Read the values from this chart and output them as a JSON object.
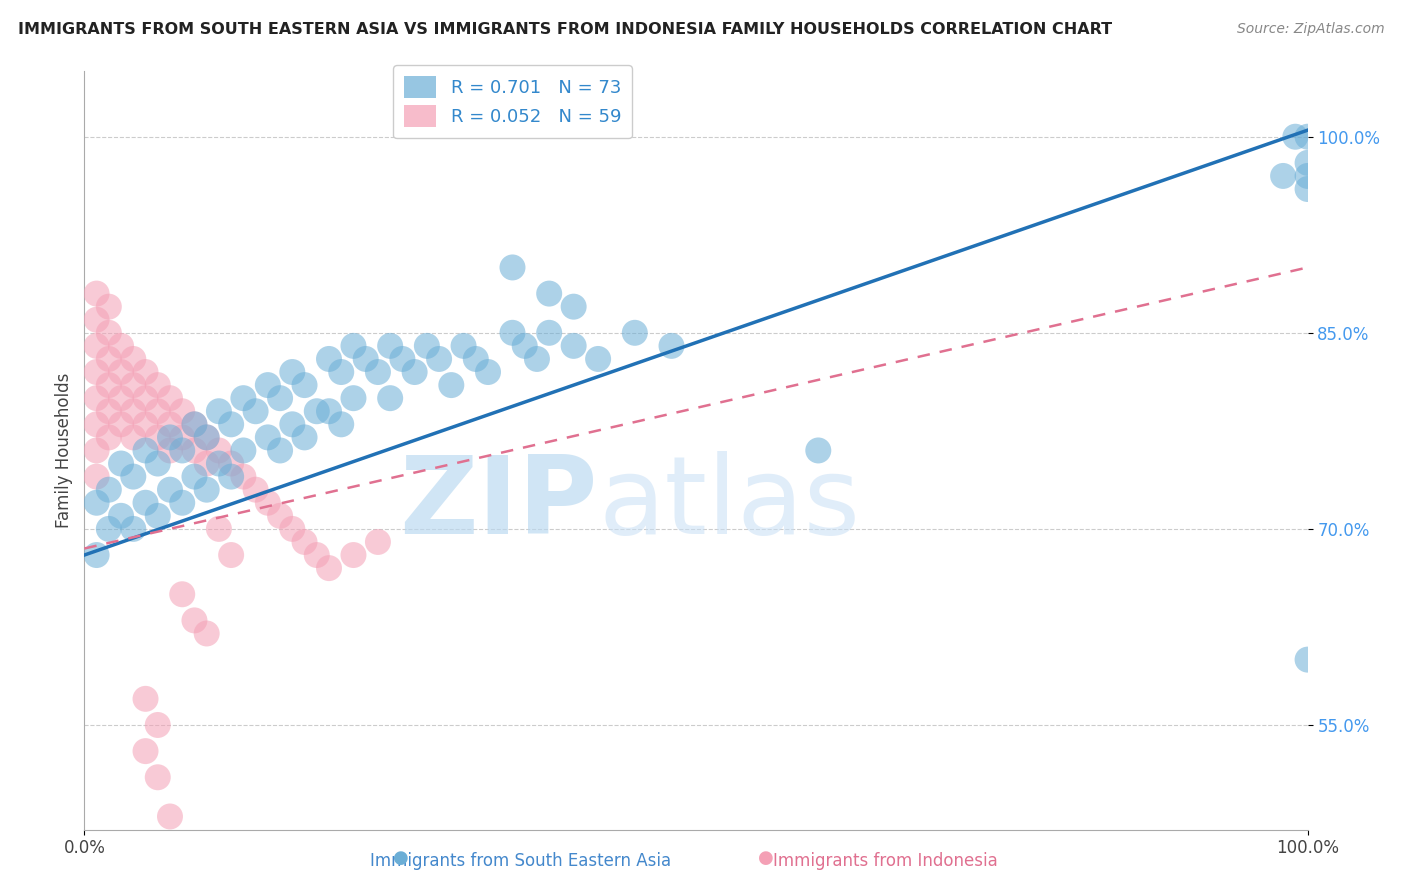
{
  "title": "IMMIGRANTS FROM SOUTH EASTERN ASIA VS IMMIGRANTS FROM INDONESIA FAMILY HOUSEHOLDS CORRELATION CHART",
  "source": "Source: ZipAtlas.com",
  "ylabel": "Family Households",
  "series1_label": "Immigrants from South Eastern Asia",
  "series1_color": "#6baed6",
  "series1_R": 0.701,
  "series1_N": 73,
  "series2_label": "Immigrants from Indonesia",
  "series2_color": "#f4a0b5",
  "series2_R": 0.052,
  "series2_N": 59,
  "watermark_zip": "ZIP",
  "watermark_atlas": "atlas",
  "xlim": [
    0.0,
    1.0
  ],
  "ylim": [
    0.47,
    1.05
  ],
  "series1_x": [
    0.01,
    0.01,
    0.02,
    0.02,
    0.03,
    0.03,
    0.04,
    0.04,
    0.05,
    0.05,
    0.06,
    0.06,
    0.07,
    0.07,
    0.08,
    0.08,
    0.09,
    0.09,
    0.1,
    0.1,
    0.11,
    0.11,
    0.12,
    0.12,
    0.13,
    0.13,
    0.14,
    0.15,
    0.15,
    0.16,
    0.16,
    0.17,
    0.17,
    0.18,
    0.18,
    0.19,
    0.2,
    0.2,
    0.21,
    0.21,
    0.22,
    0.22,
    0.23,
    0.24,
    0.25,
    0.25,
    0.26,
    0.27,
    0.28,
    0.29,
    0.3,
    0.31,
    0.32,
    0.33,
    0.35,
    0.36,
    0.37,
    0.38,
    0.4,
    0.42,
    0.45,
    0.48,
    0.35,
    0.38,
    0.4,
    0.6,
    0.98,
    0.99,
    1.0,
    1.0,
    1.0,
    1.0,
    1.0
  ],
  "series1_y": [
    0.72,
    0.68,
    0.73,
    0.7,
    0.75,
    0.71,
    0.74,
    0.7,
    0.76,
    0.72,
    0.75,
    0.71,
    0.77,
    0.73,
    0.76,
    0.72,
    0.78,
    0.74,
    0.77,
    0.73,
    0.79,
    0.75,
    0.78,
    0.74,
    0.8,
    0.76,
    0.79,
    0.81,
    0.77,
    0.8,
    0.76,
    0.82,
    0.78,
    0.81,
    0.77,
    0.79,
    0.83,
    0.79,
    0.82,
    0.78,
    0.84,
    0.8,
    0.83,
    0.82,
    0.84,
    0.8,
    0.83,
    0.82,
    0.84,
    0.83,
    0.81,
    0.84,
    0.83,
    0.82,
    0.85,
    0.84,
    0.83,
    0.85,
    0.84,
    0.83,
    0.85,
    0.84,
    0.9,
    0.88,
    0.87,
    0.76,
    0.97,
    1.0,
    0.97,
    0.98,
    1.0,
    0.96,
    0.6
  ],
  "series2_x": [
    0.01,
    0.01,
    0.01,
    0.01,
    0.01,
    0.01,
    0.01,
    0.01,
    0.02,
    0.02,
    0.02,
    0.02,
    0.02,
    0.02,
    0.03,
    0.03,
    0.03,
    0.03,
    0.04,
    0.04,
    0.04,
    0.04,
    0.05,
    0.05,
    0.05,
    0.06,
    0.06,
    0.06,
    0.07,
    0.07,
    0.07,
    0.08,
    0.08,
    0.09,
    0.09,
    0.1,
    0.1,
    0.11,
    0.12,
    0.13,
    0.14,
    0.15,
    0.16,
    0.17,
    0.18,
    0.19,
    0.2,
    0.22,
    0.24,
    0.05,
    0.06,
    0.07,
    0.08,
    0.09,
    0.1,
    0.11,
    0.12,
    0.05,
    0.06
  ],
  "series2_y": [
    0.88,
    0.86,
    0.84,
    0.82,
    0.8,
    0.78,
    0.76,
    0.74,
    0.87,
    0.85,
    0.83,
    0.81,
    0.79,
    0.77,
    0.84,
    0.82,
    0.8,
    0.78,
    0.83,
    0.81,
    0.79,
    0.77,
    0.82,
    0.8,
    0.78,
    0.81,
    0.79,
    0.77,
    0.8,
    0.78,
    0.76,
    0.79,
    0.77,
    0.78,
    0.76,
    0.77,
    0.75,
    0.76,
    0.75,
    0.74,
    0.73,
    0.72,
    0.71,
    0.7,
    0.69,
    0.68,
    0.67,
    0.68,
    0.69,
    0.53,
    0.51,
    0.48,
    0.65,
    0.63,
    0.62,
    0.7,
    0.68,
    0.57,
    0.55
  ],
  "trend1_x0": 0.0,
  "trend1_y0": 0.68,
  "trend1_x1": 1.0,
  "trend1_y1": 1.005,
  "trend2_x0": 0.0,
  "trend2_y0": 0.685,
  "trend2_x1": 1.0,
  "trend2_y1": 0.9
}
